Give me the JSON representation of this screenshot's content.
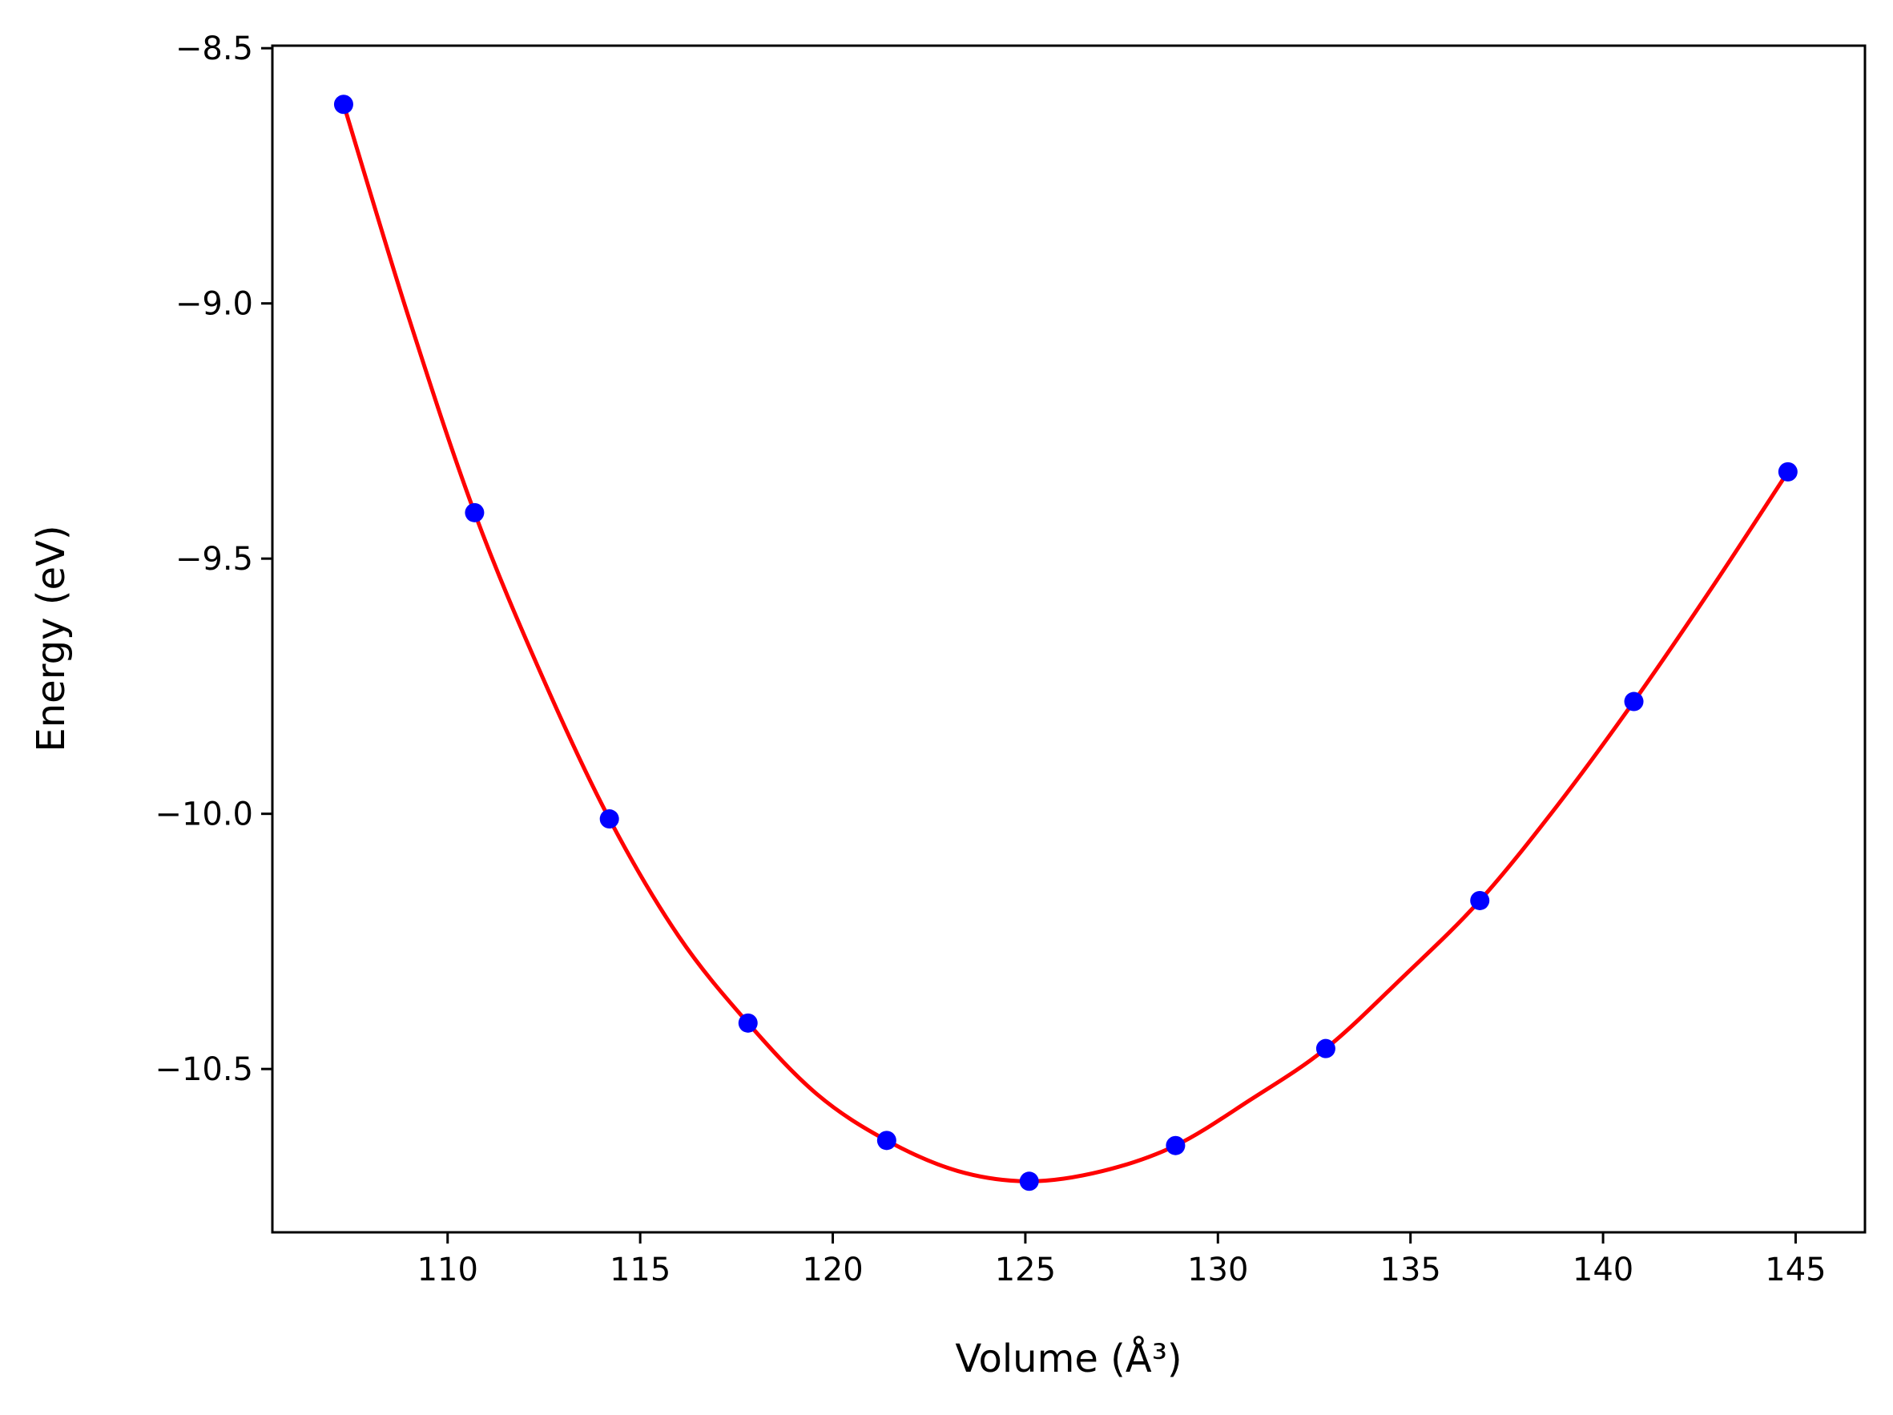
{
  "chart_data": {
    "type": "scatter",
    "xlabel": "Volume (Å³)",
    "ylabel": "Energy (eV)",
    "xlim": [
      105.45,
      146.8
    ],
    "ylim": [
      -10.82,
      -8.495
    ],
    "x_ticks": [
      110,
      115,
      120,
      125,
      130,
      135,
      140,
      145
    ],
    "x_tick_labels": [
      "110",
      "115",
      "120",
      "125",
      "130",
      "135",
      "140",
      "145"
    ],
    "y_ticks": [
      -8.5,
      -9.0,
      -9.5,
      -10.0,
      -10.5
    ],
    "y_tick_labels": [
      "−8.5",
      "−9.0",
      "−9.5",
      "−10.0",
      "−10.5"
    ],
    "grid": false,
    "series": [
      {
        "kind": "points",
        "color": "#0000ff",
        "x": [
          107.3,
          110.7,
          114.2,
          117.8,
          121.4,
          125.1,
          128.9,
          132.8,
          136.8,
          140.8,
          144.8
        ],
        "y": [
          -8.61,
          -9.41,
          -10.01,
          -10.41,
          -10.64,
          -10.72,
          -10.65,
          -10.46,
          -10.17,
          -9.78,
          -9.33
        ]
      },
      {
        "kind": "fit-curve",
        "color": "#ff0000",
        "x": [
          107.3,
          109.0,
          110.7,
          112.45,
          114.2,
          116.0,
          117.8,
          119.6,
          121.4,
          123.25,
          125.1,
          127.0,
          128.9,
          130.85,
          132.8,
          134.8,
          136.8,
          138.8,
          140.8,
          142.8,
          144.8
        ],
        "y": [
          -8.61,
          -9.03,
          -9.41,
          -9.73,
          -10.01,
          -10.24,
          -10.41,
          -10.55,
          -10.64,
          -10.7,
          -10.72,
          -10.7,
          -10.65,
          -10.56,
          -10.46,
          -10.32,
          -10.17,
          -9.985,
          -9.78,
          -9.56,
          -9.33
        ]
      }
    ]
  }
}
